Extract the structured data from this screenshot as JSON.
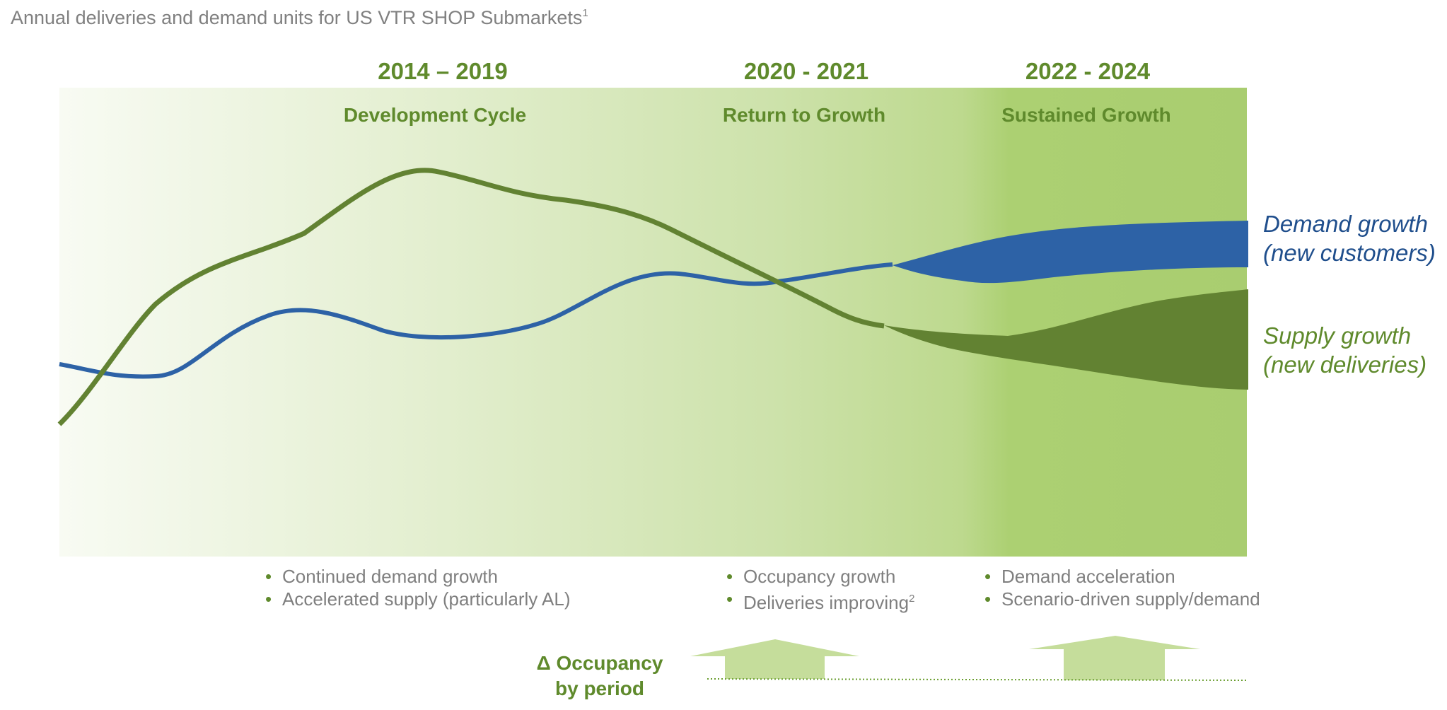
{
  "title": "Annual deliveries and demand units for US VTR SHOP Submarkets",
  "title_footnote": "1",
  "colors": {
    "demand": "#2d62a6",
    "supply": "#628232",
    "accent_text": "#5f8a2c",
    "band_light": "#f7faf2",
    "band_dark": "#a9cd70",
    "arrow": "#c5dd9b"
  },
  "periods": [
    {
      "years": "2014 – 2019",
      "name": "Development Cycle"
    },
    {
      "years": "2020 - 2021",
      "name": "Return to Growth"
    },
    {
      "years": "2022 - 2024",
      "name": "Sustained Growth"
    }
  ],
  "series": {
    "demand": {
      "line1": "Demand growth",
      "line2": "(new customers)"
    },
    "supply": {
      "line1": "Supply growth",
      "line2": "(new deliveries)"
    }
  },
  "notes": [
    {
      "items": [
        "Continued demand growth",
        "Accelerated supply (particularly AL)"
      ]
    },
    {
      "items": [
        "Occupancy growth",
        "Deliveries improving"
      ],
      "footnote": "2"
    },
    {
      "items": [
        "Demand acceleration",
        "Scenario-driven supply/demand"
      ]
    }
  ],
  "occupancy": {
    "line1": "Δ Occupancy",
    "line2": "by period"
  }
}
